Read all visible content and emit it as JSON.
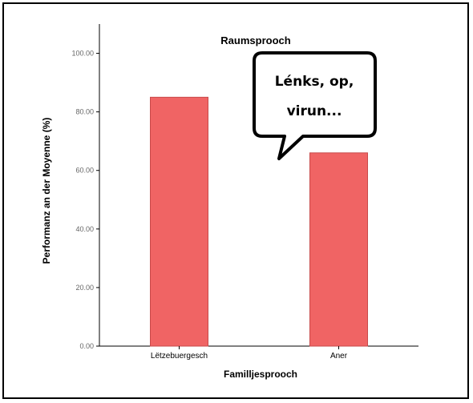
{
  "chart_data": {
    "type": "bar",
    "title": "Raumsprooch",
    "xlabel": "Familljesprooch",
    "ylabel": "Performanz an der Moyenne (%)",
    "categories": [
      "Lëtzebuergesch",
      "Aner"
    ],
    "values": [
      85,
      66
    ],
    "ylim": [
      0,
      110
    ],
    "yticks": [
      "0.00",
      "20.00",
      "40.00",
      "60.00",
      "80.00",
      "100.00"
    ],
    "grid": false,
    "bar_color": "#f06464",
    "annotation": {
      "line1": "Lénks, op,",
      "line2": "virun..."
    }
  }
}
